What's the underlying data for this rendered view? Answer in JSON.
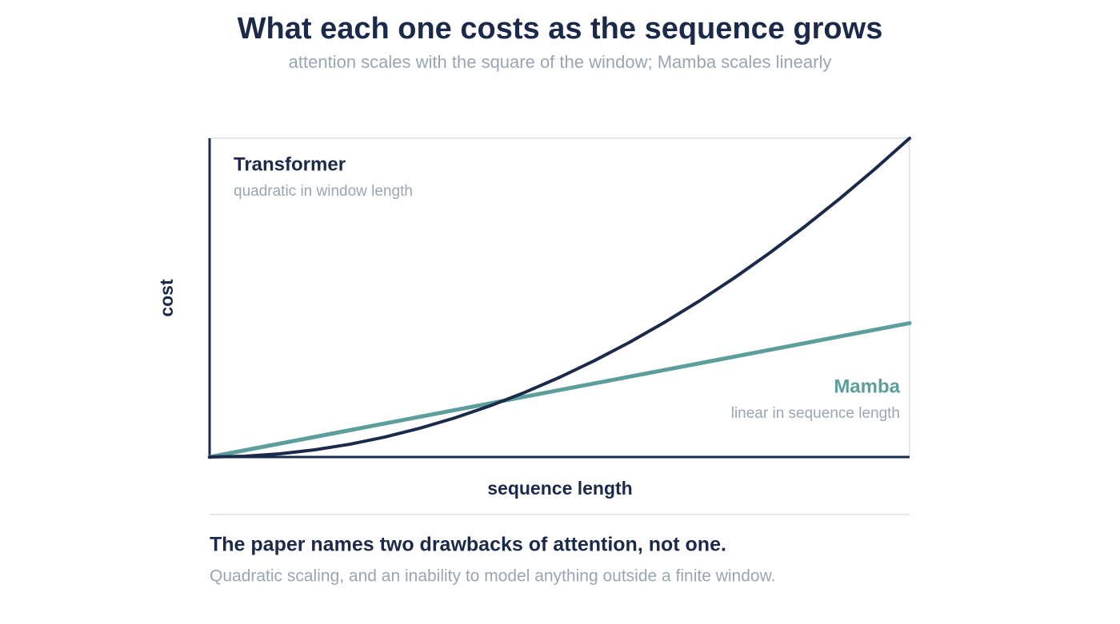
{
  "chart_data": {
    "type": "line",
    "title": "What each one costs as the sequence grows",
    "subtitle": "attention scales with the square of the window; Mamba scales linearly",
    "x_label": "sequence length",
    "y_label": "cost",
    "xlim": [
      0,
      1
    ],
    "ylim": [
      0,
      1
    ],
    "x": [
      0,
      0.05,
      0.1,
      0.15,
      0.2,
      0.25,
      0.3,
      0.35,
      0.4,
      0.45,
      0.5,
      0.55,
      0.6,
      0.65,
      0.7,
      0.75,
      0.8,
      0.85,
      0.9,
      0.95,
      1
    ],
    "series": [
      {
        "name": "Transformer",
        "note": "quadratic in window length",
        "color": "#1b2a4a",
        "values": [
          0,
          0.0025,
          0.01,
          0.0225,
          0.04,
          0.0625,
          0.09,
          0.1225,
          0.16,
          0.2025,
          0.25,
          0.3025,
          0.36,
          0.4225,
          0.49,
          0.5625,
          0.64,
          0.7225,
          0.81,
          0.9025,
          1
        ]
      },
      {
        "name": "Mamba",
        "note": "linear in sequence length",
        "color": "#5b9e9c",
        "values": [
          0,
          0.021,
          0.042,
          0.063,
          0.084,
          0.105,
          0.126,
          0.147,
          0.168,
          0.189,
          0.21,
          0.231,
          0.252,
          0.273,
          0.294,
          0.315,
          0.336,
          0.357,
          0.378,
          0.399,
          0.42
        ]
      }
    ]
  },
  "footer": {
    "heading": "The paper names two drawbacks of attention, not one.",
    "text": "Quadratic scaling, and an inability to model anything outside a finite window."
  }
}
